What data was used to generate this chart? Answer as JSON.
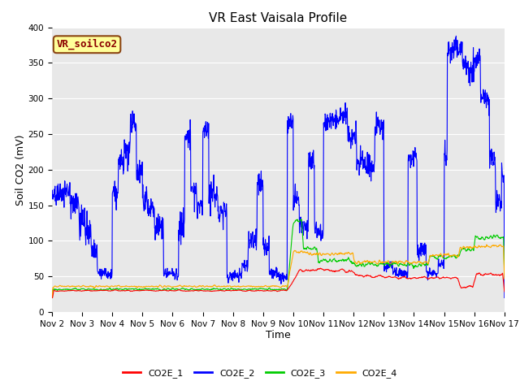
{
  "title": "VR East Vaisala Profile",
  "xlabel": "Time",
  "ylabel": "Soil CO2 (mV)",
  "annotation": "VR_soilco2",
  "xlim": [
    0,
    15
  ],
  "ylim": [
    0,
    400
  ],
  "yticks": [
    0,
    50,
    100,
    150,
    200,
    250,
    300,
    350,
    400
  ],
  "xtick_labels": [
    "Nov 2",
    "Nov 3",
    "Nov 4",
    "Nov 5",
    "Nov 6",
    "Nov 7",
    "Nov 8",
    "Nov 9",
    "Nov 10",
    "Nov 11",
    "Nov 12",
    "Nov 13",
    "Nov 14",
    "Nov 15",
    "Nov 16",
    "Nov 17"
  ],
  "colors": {
    "CO2E_1": "#ff0000",
    "CO2E_2": "#0000ff",
    "CO2E_3": "#00cc00",
    "CO2E_4": "#ffaa00"
  },
  "plot_bg_color": "#e8e8e8",
  "linewidth": 0.8,
  "title_fontsize": 11,
  "axis_label_fontsize": 9,
  "tick_fontsize": 7.5,
  "legend_fontsize": 8,
  "annotation_fontsize": 9
}
